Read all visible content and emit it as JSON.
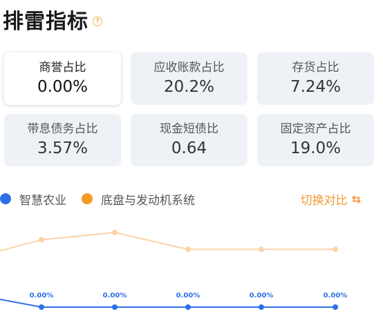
{
  "header": {
    "title": "排雷指标",
    "help_icon": "?"
  },
  "metrics": [
    {
      "label": "商誉占比",
      "value": "0.00%"
    },
    {
      "label": "应收账款占比",
      "value": "20.2%"
    },
    {
      "label": "存货占比",
      "value": "7.24%"
    },
    {
      "label": "带息债务占比",
      "value": "3.57%"
    },
    {
      "label": "现金短债比",
      "value": "0.64"
    },
    {
      "label": "固定资产占比",
      "value": "19.0%"
    }
  ],
  "active_metric": "商誉占比",
  "legend": [
    {
      "name": "智慧农业",
      "color": "#2e6fe6"
    },
    {
      "name": "底盘与发动机系统",
      "color": "#f59a23"
    }
  ],
  "compare_button": {
    "label": "切换对比",
    "icon": "switch-icon"
  },
  "chart_data": {
    "type": "line",
    "ylim": [
      0,
      3.5
    ],
    "series": [
      {
        "name": "智慧农业",
        "color": "#2e6fe6",
        "values": [
          0.0,
          0.0,
          0.0,
          0.0,
          0.0
        ],
        "labels": [
          "0.00%",
          "0.00%",
          "0.00%",
          "0.00%",
          "0.00%"
        ],
        "lead_in": 0.35
      },
      {
        "name": "底盘与发动机系统",
        "color": "#f59a23",
        "values": [
          2.8,
          3.1,
          2.4,
          2.4,
          2.4
        ],
        "lead_in": 2.3
      }
    ]
  }
}
